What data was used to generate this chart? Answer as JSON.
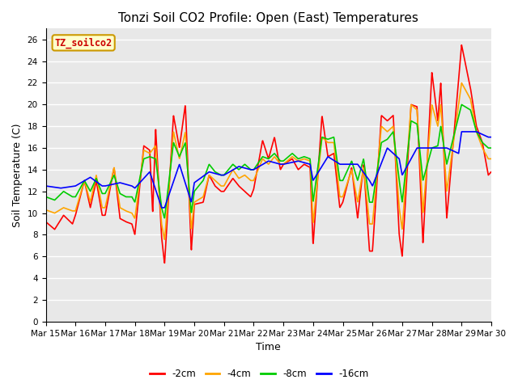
{
  "title": "Tonzi Soil CO2 Profile: Open (East) Temperatures",
  "xlabel": "Time",
  "ylabel": "Soil Temperature (C)",
  "ylim": [
    0,
    27
  ],
  "yticks": [
    0,
    2,
    4,
    6,
    8,
    10,
    12,
    14,
    16,
    18,
    20,
    22,
    24,
    26
  ],
  "xtick_labels": [
    "Mar 15",
    "Mar 16",
    "Mar 17",
    "Mar 18",
    "Mar 19",
    "Mar 20",
    "Mar 21",
    "Mar 22",
    "Mar 23",
    "Mar 24",
    "Mar 25",
    "Mar 26",
    "Mar 27",
    "Mar 28",
    "Mar 29",
    "Mar 30"
  ],
  "legend_label": "TZ_soilco2",
  "series_labels": [
    "-2cm",
    "-4cm",
    "-8cm",
    "-16cm"
  ],
  "series_colors": [
    "#ff0000",
    "#ffa500",
    "#00cc00",
    "#0000ff"
  ],
  "plot_bg_color": "#e8e8e8",
  "grid_color": "#ffffff",
  "title_fontsize": 11,
  "axis_fontsize": 9,
  "tick_fontsize": 7.5,
  "linewidth": 1.2
}
